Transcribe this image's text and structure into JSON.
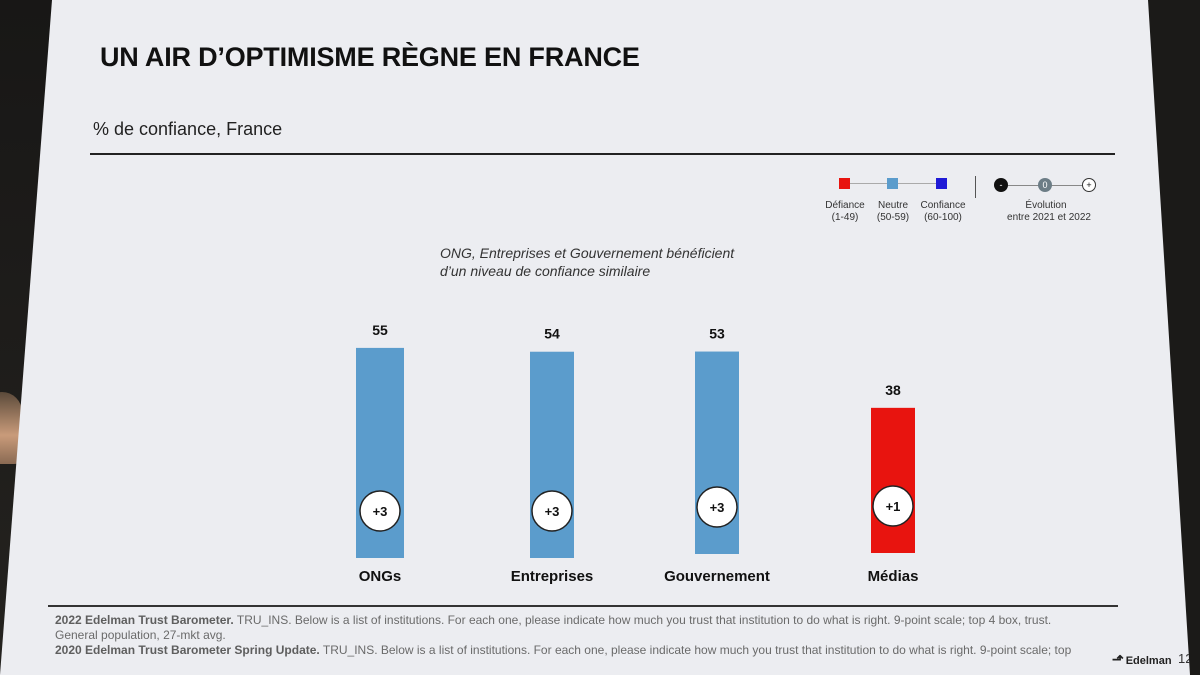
{
  "title": "UN AIR D’OPTIMISME RÈGNE EN FRANCE",
  "subtitle": "% de confiance, France",
  "legend": {
    "defiance": {
      "label": "Défiance",
      "range": "(1-49)",
      "color": "#e8140f"
    },
    "neutre": {
      "label": "Neutre",
      "range": "(50-59)",
      "color": "#5b9ccc"
    },
    "confiance": {
      "label": "Confiance",
      "range": "(60-100)",
      "color": "#1f1ad6"
    },
    "evolution": {
      "minus": "-",
      "zero": "0",
      "plus": "+",
      "label_line1": "Évolution",
      "label_line2": "entre 2021 et 2022"
    }
  },
  "annotation": {
    "line1": "ONG, Entreprises et Gouvernement bénéficient",
    "line2": "d’un niveau de confiance similaire"
  },
  "chart_data": {
    "type": "bar",
    "title": "% de confiance, France",
    "categories": [
      "ONGs",
      "Entreprises",
      "Gouvernement",
      "Médias"
    ],
    "values": [
      55,
      54,
      53,
      38
    ],
    "changes": [
      "+3",
      "+3",
      "+3",
      "+1"
    ],
    "bar_colors": [
      "#5b9ccc",
      "#5b9ccc",
      "#5b9ccc",
      "#e8140f"
    ],
    "ylim": [
      0,
      60
    ],
    "xlabel": "",
    "ylabel": ""
  },
  "footnotes": {
    "line1_bold": "2022 Edelman Trust Barometer.",
    "line1": " TRU_INS. Below is a list of institutions. For each one, please indicate how much you trust that institution to do what is right. 9-point scale; top 4 box, trust.",
    "line2": "General population, 27-mkt avg.",
    "line3_bold": "2020 Edelman Trust Barometer Spring Update.",
    "line3": " TRU_INS. Below is a list of institutions. For each one, please indicate how much you trust that institution to do what is right. 9-point scale; top"
  },
  "brand": "Edelman",
  "page_number": "12"
}
